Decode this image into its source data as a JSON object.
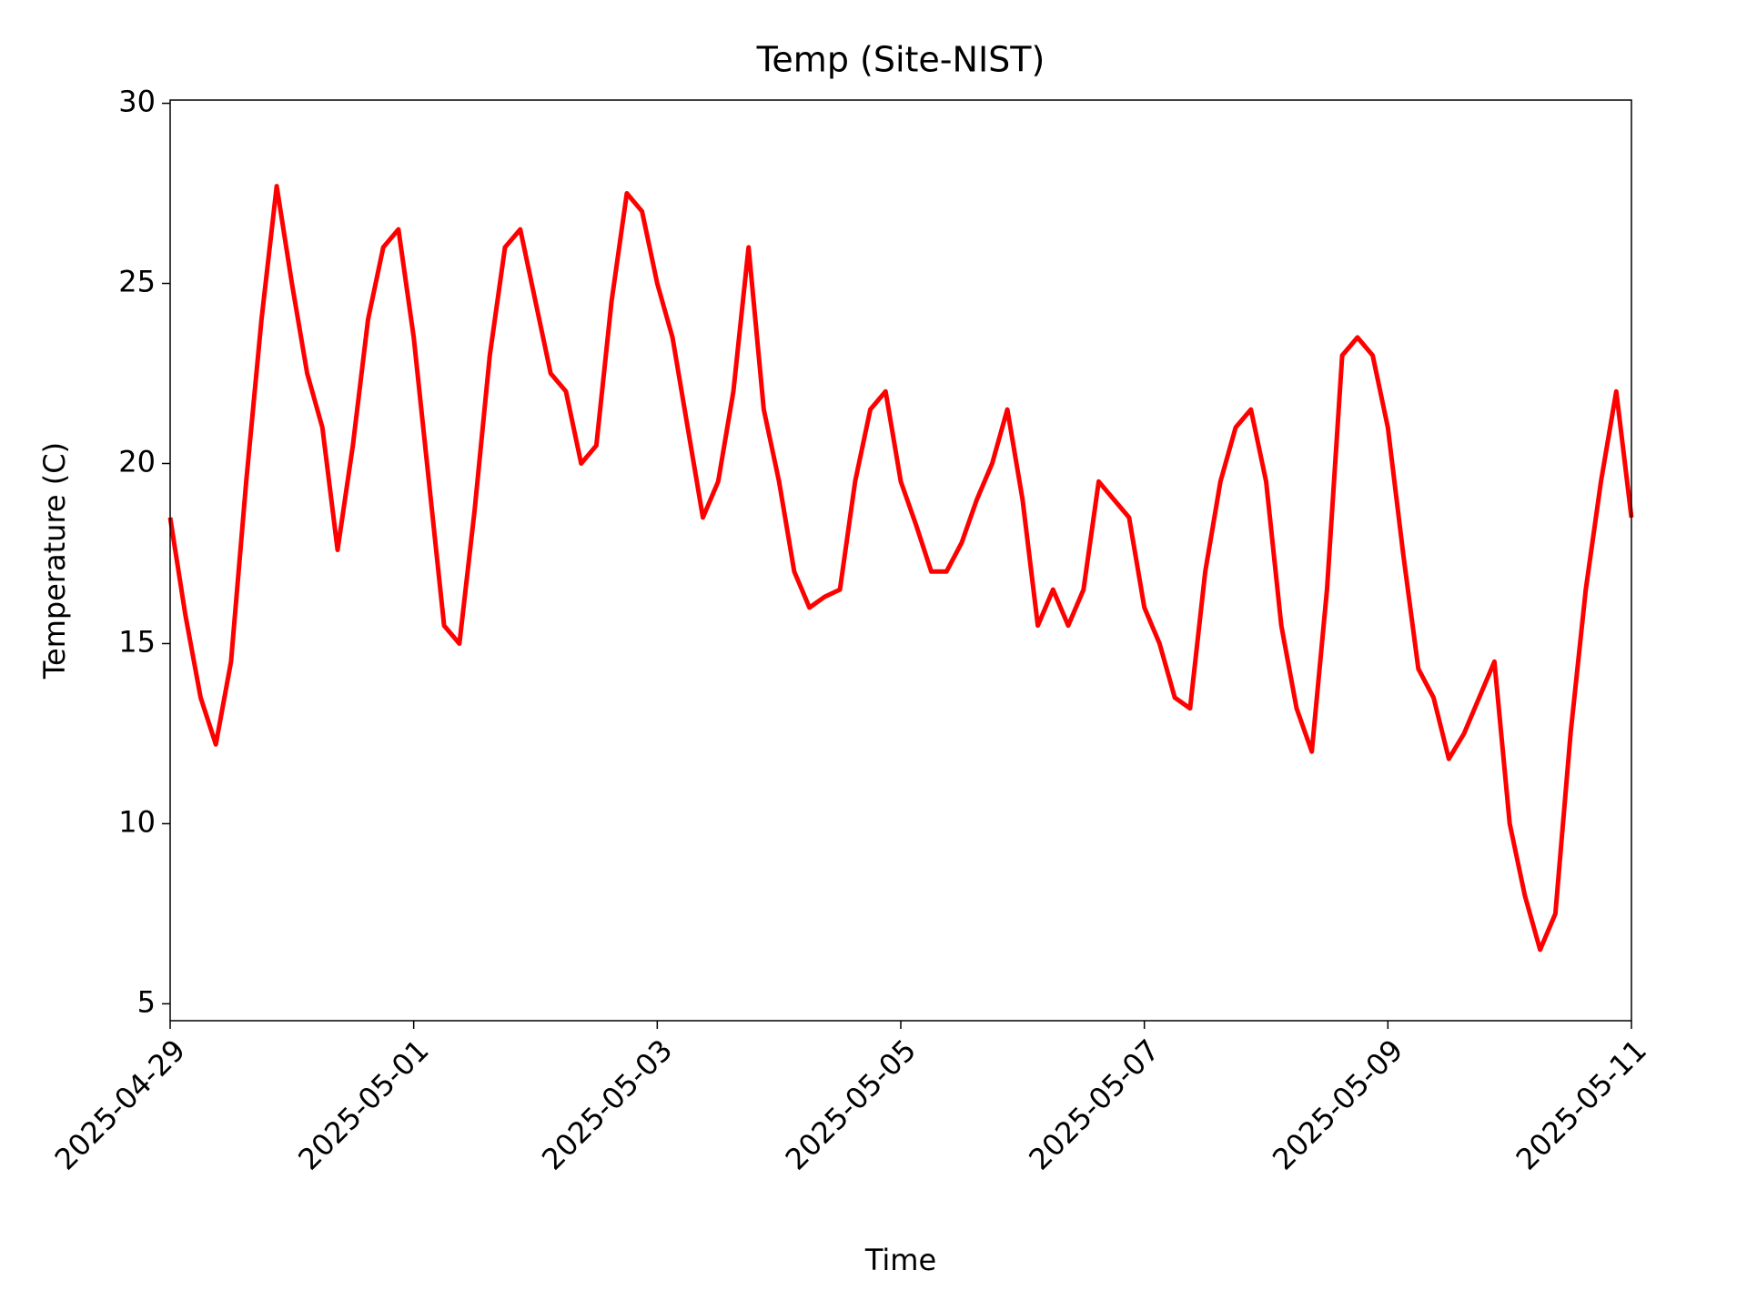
{
  "chart_data": {
    "type": "line",
    "title": "Temp (Site-NIST)",
    "x_label": "Time",
    "y_label": "Temperature (C)",
    "xlim": [
      "2025-04-29",
      "2025-05-11"
    ],
    "xticks": [
      "2025-04-29",
      "2025-05-01",
      "2025-05-03",
      "2025-05-05",
      "2025-05-07",
      "2025-05-09",
      "2025-05-11"
    ],
    "ylim": [
      4.53,
      30.09
    ],
    "yticks": [
      5,
      10,
      15,
      20,
      25,
      30
    ],
    "x": [
      "2025-04-29 00:00",
      "2025-04-29 03:00",
      "2025-04-29 06:00",
      "2025-04-29 09:00",
      "2025-04-29 12:00",
      "2025-04-29 15:00",
      "2025-04-29 18:00",
      "2025-04-29 21:00",
      "2025-04-30 00:00",
      "2025-04-30 03:00",
      "2025-04-30 06:00",
      "2025-04-30 09:00",
      "2025-04-30 12:00",
      "2025-04-30 15:00",
      "2025-04-30 18:00",
      "2025-04-30 21:00",
      "2025-05-01 00:00",
      "2025-05-01 03:00",
      "2025-05-01 06:00",
      "2025-05-01 09:00",
      "2025-05-01 12:00",
      "2025-05-01 15:00",
      "2025-05-01 18:00",
      "2025-05-01 21:00",
      "2025-05-02 00:00",
      "2025-05-02 03:00",
      "2025-05-02 06:00",
      "2025-05-02 09:00",
      "2025-05-02 12:00",
      "2025-05-02 15:00",
      "2025-05-02 18:00",
      "2025-05-02 21:00",
      "2025-05-03 00:00",
      "2025-05-03 03:00",
      "2025-05-03 06:00",
      "2025-05-03 09:00",
      "2025-05-03 12:00",
      "2025-05-03 15:00",
      "2025-05-03 18:00",
      "2025-05-03 21:00",
      "2025-05-04 00:00",
      "2025-05-04 03:00",
      "2025-05-04 06:00",
      "2025-05-04 09:00",
      "2025-05-04 12:00",
      "2025-05-04 15:00",
      "2025-05-04 18:00",
      "2025-05-04 21:00",
      "2025-05-05 00:00",
      "2025-05-05 03:00",
      "2025-05-05 06:00",
      "2025-05-05 09:00",
      "2025-05-05 12:00",
      "2025-05-05 15:00",
      "2025-05-05 18:00",
      "2025-05-05 21:00",
      "2025-05-06 00:00",
      "2025-05-06 03:00",
      "2025-05-06 06:00",
      "2025-05-06 09:00",
      "2025-05-06 12:00",
      "2025-05-06 15:00",
      "2025-05-06 18:00",
      "2025-05-06 21:00",
      "2025-05-07 00:00",
      "2025-05-07 03:00",
      "2025-05-07 06:00",
      "2025-05-07 09:00",
      "2025-05-07 12:00",
      "2025-05-07 15:00",
      "2025-05-07 18:00",
      "2025-05-07 21:00",
      "2025-05-08 00:00",
      "2025-05-08 03:00",
      "2025-05-08 06:00",
      "2025-05-08 09:00",
      "2025-05-08 12:00",
      "2025-05-08 15:00",
      "2025-05-08 18:00",
      "2025-05-08 21:00",
      "2025-05-09 00:00",
      "2025-05-09 03:00",
      "2025-05-09 06:00",
      "2025-05-09 09:00",
      "2025-05-09 12:00",
      "2025-05-09 15:00",
      "2025-05-09 18:00",
      "2025-05-09 21:00",
      "2025-05-10 00:00",
      "2025-05-10 03:00",
      "2025-05-10 06:00",
      "2025-05-10 09:00",
      "2025-05-10 12:00",
      "2025-05-10 15:00",
      "2025-05-10 18:00",
      "2025-05-10 21:00",
      "2025-05-11 00:00"
    ],
    "series": [
      {
        "name": "Temp",
        "color": "#ff0000",
        "values": [
          18.5,
          15.8,
          13.5,
          12.2,
          14.5,
          19.5,
          24,
          27.7,
          25,
          22.5,
          21,
          17.6,
          20.5,
          24,
          26,
          26.5,
          23.5,
          19.5,
          15.5,
          15,
          18.7,
          23,
          26,
          26.5,
          24.5,
          22.5,
          22,
          20,
          20.5,
          24.5,
          27.5,
          27,
          25,
          23.5,
          21,
          18.5,
          19.5,
          22,
          26,
          21.5,
          19.5,
          17,
          16,
          16.3,
          16.5,
          19.5,
          21.5,
          22,
          19.5,
          18.3,
          17,
          17,
          17.8,
          19,
          20,
          21.5,
          19,
          15.5,
          16.5,
          15.5,
          16.5,
          19.5,
          19,
          18.5,
          16,
          15,
          13.5,
          13.2,
          17,
          19.5,
          21,
          21.5,
          19.5,
          15.5,
          13.2,
          12,
          16.5,
          23,
          23.5,
          23,
          21,
          17.5,
          14.3,
          13.5,
          11.8,
          12.5,
          13.5,
          14.5,
          10,
          8,
          6.5,
          7.5,
          12.5,
          16.5,
          19.5,
          22,
          18.5
        ]
      }
    ]
  }
}
